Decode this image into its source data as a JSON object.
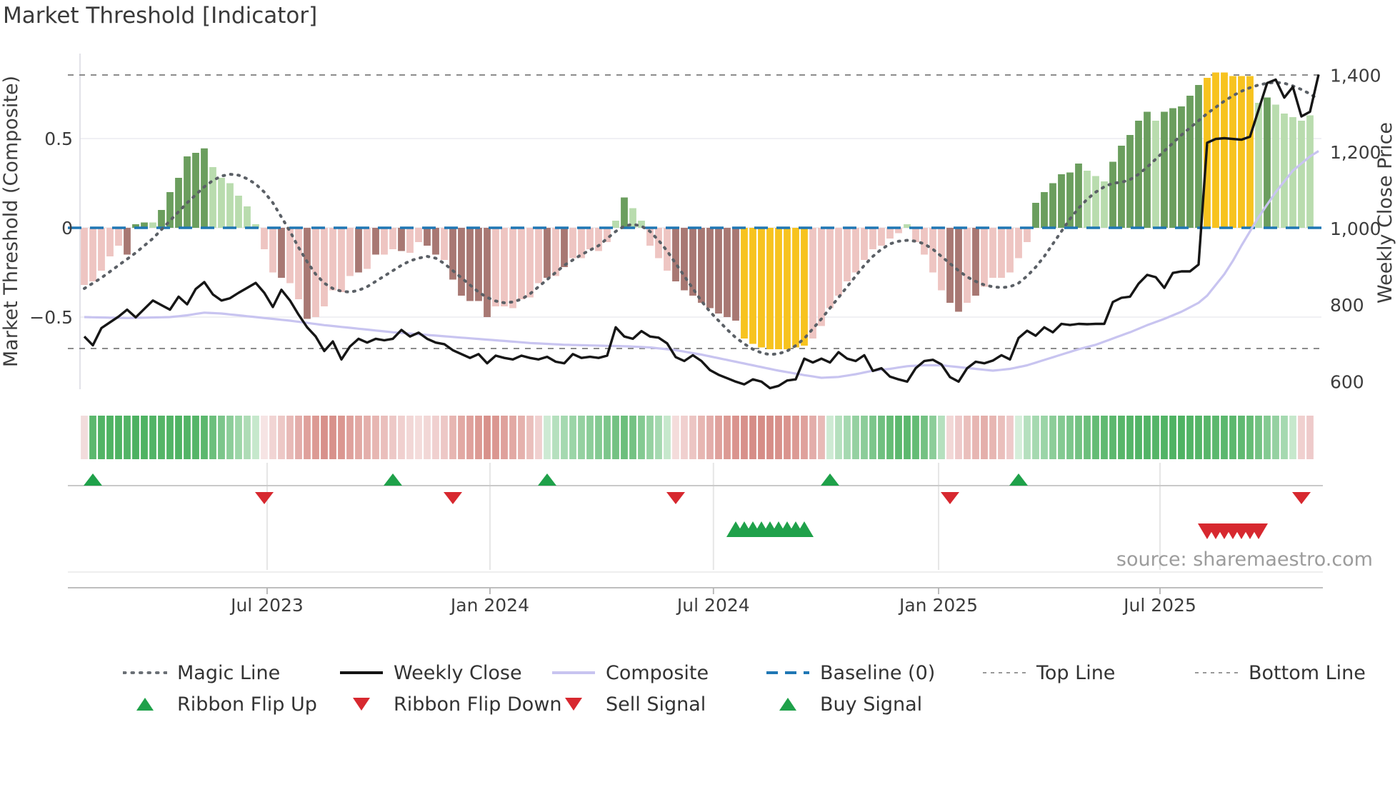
{
  "title": "Market Threshold [Indicator]",
  "source": "source: sharemaestro.com",
  "axes": {
    "left_title": "Market Threshold (Composite)",
    "right_title": "Weekly Close Price",
    "left_ticks": [
      {
        "v": 0.5,
        "label": "0.5"
      },
      {
        "v": 0.0,
        "label": "0"
      },
      {
        "v": -0.5,
        "label": "−0.5"
      }
    ],
    "right_ticks": [
      {
        "p": 1400,
        "label": "1,400"
      },
      {
        "p": 1200,
        "label": "1,200"
      },
      {
        "p": 1000,
        "label": "1,000"
      },
      {
        "p": 800,
        "label": "800"
      },
      {
        "p": 600,
        "label": "600"
      }
    ],
    "x_ticks": [
      {
        "i": 21.33,
        "label": "Jul 2023"
      },
      {
        "i": 47.33,
        "label": "Jan 2024"
      },
      {
        "i": 73.4,
        "label": "Jul 2024"
      },
      {
        "i": 99.67,
        "label": "Jan 2025"
      },
      {
        "i": 125.5,
        "label": "Jul 2025"
      }
    ]
  },
  "legend": {
    "row1": [
      {
        "label": "Magic Line",
        "type": "dotted-bold",
        "color": "#6a6f75"
      },
      {
        "label": "Weekly Close",
        "type": "solid",
        "color": "#141414"
      },
      {
        "label": "Composite",
        "type": "solid",
        "color": "#c8c4f0"
      },
      {
        "label": "Baseline (0)",
        "type": "dashed",
        "color": "#1f77b4"
      },
      {
        "label": "Top Line",
        "type": "dashed-small",
        "color": "#999999"
      },
      {
        "label": "Bottom Line",
        "type": "dashed-small",
        "color": "#999999"
      }
    ],
    "row2": [
      {
        "label": "Ribbon Flip Up",
        "type": "tri-up",
        "color": "#1fa14a"
      },
      {
        "label": "Ribbon Flip Down",
        "type": "tri-down",
        "color": "#d7282f"
      },
      {
        "label": "Sell Signal",
        "type": "tri-down",
        "color": "#d7282f"
      },
      {
        "label": "Buy Signal",
        "type": "tri-up",
        "color": "#1fa14a"
      }
    ],
    "row1_lefts": [
      172,
      475,
      772,
      1072,
      1375,
      1672
    ],
    "row2_lefts": [
      172,
      475,
      772,
      1072
    ]
  },
  "chart_data": {
    "type": "combo",
    "description": "Weekly composite-threshold histogram with ribbon strip, signal markers, weekly close price line (right axis), composite and magic smoothing lines (left axis).",
    "left_ylim": [
      -0.9,
      0.98
    ],
    "right_ylim": [
      580,
      1460
    ],
    "baseline": 0,
    "top_line": 0.856,
    "bottom_line": -0.676,
    "bar_color_map": {
      "G": "#6b9e5e",
      "g": "#b9dcae",
      "r": "#eec5c2",
      "R": "#a87873",
      "y": "#f7c31f"
    },
    "line_colors": {
      "weekly_close": "#161616",
      "composite": "#c8c4f0",
      "magic": "#5b6066",
      "baseline": "#1f77b4",
      "top_bottom": "#8c8c8c",
      "flip_up": "#1fa14a",
      "flip_down": "#d7282f"
    },
    "composite_bars": {
      "values": [
        -0.32,
        -0.3,
        -0.24,
        -0.16,
        -0.1,
        -0.15,
        0.02,
        0.03,
        0.03,
        0.1,
        0.2,
        0.28,
        0.4,
        0.42,
        0.445,
        0.34,
        0.28,
        0.25,
        0.18,
        0.12,
        0.02,
        -0.12,
        -0.25,
        -0.28,
        -0.31,
        -0.4,
        -0.51,
        -0.5,
        -0.44,
        -0.35,
        -0.36,
        -0.27,
        -0.25,
        -0.23,
        -0.15,
        -0.15,
        -0.12,
        -0.13,
        -0.14,
        -0.08,
        -0.1,
        -0.15,
        -0.18,
        -0.29,
        -0.38,
        -0.41,
        -0.41,
        -0.5,
        -0.44,
        -0.44,
        -0.45,
        -0.4,
        -0.39,
        -0.31,
        -0.28,
        -0.27,
        -0.22,
        -0.17,
        -0.17,
        -0.12,
        -0.13,
        -0.08,
        0.04,
        0.17,
        0.11,
        0.04,
        -0.1,
        -0.17,
        -0.24,
        -0.3,
        -0.35,
        -0.38,
        -0.42,
        -0.45,
        -0.48,
        -0.5,
        -0.52,
        -0.62,
        -0.65,
        -0.67,
        -0.68,
        -0.68,
        -0.68,
        -0.67,
        -0.66,
        -0.62,
        -0.55,
        -0.45,
        -0.38,
        -0.3,
        -0.25,
        -0.18,
        -0.12,
        -0.1,
        -0.06,
        -0.03,
        0.02,
        -0.08,
        -0.15,
        -0.25,
        -0.35,
        -0.42,
        -0.47,
        -0.42,
        -0.38,
        -0.33,
        -0.28,
        -0.28,
        -0.25,
        -0.17,
        -0.08,
        0.14,
        0.2,
        0.25,
        0.3,
        0.31,
        0.36,
        0.32,
        0.29,
        0.26,
        0.37,
        0.46,
        0.52,
        0.6,
        0.65,
        0.6,
        0.65,
        0.67,
        0.68,
        0.74,
        0.8,
        0.84,
        0.87,
        0.87,
        0.85,
        0.85,
        0.85,
        0.7,
        0.73,
        0.69,
        0.64,
        0.62,
        0.6,
        0.63
      ],
      "colors": "rrrrrRGGgGGGGGGggggggrrRrrRrrrrrRrRrrRrrRRrRRRRRrrrrrrRrRrrrrrgGggrrrRRRRRRRRyyyyyyyyrrrrrrrrrrrgrrrrRRrRrrrrrrGGGGGGgggGGGGGgGGGGGyyyyyygGggggg"
    },
    "ribbon_colors": [
      "#f2dcdc",
      "#5cb86e",
      "#52b466",
      "#4fb363",
      "#4fb363",
      "#52b466",
      "#4db161",
      "#4fb363",
      "#52b466",
      "#55b568",
      "#52b466",
      "#4fb363",
      "#52b466",
      "#55b568",
      "#5cb86e",
      "#6cbf7c",
      "#7cc68b",
      "#8ccd99",
      "#9dd6a8",
      "#aedcb6",
      "#c6e8cc",
      "#f6e4e4",
      "#f1d4d3",
      "#edc8c6",
      "#e8bab7",
      "#e3adaa",
      "#dfa19c",
      "#dc9a94",
      "#d8918b",
      "#d8918b",
      "#db9791",
      "#dfa19c",
      "#e2a9a4",
      "#e4afab",
      "#e7b6b2",
      "#eabfbc",
      "#edc8c6",
      "#f0d0cf",
      "#f2d7d6",
      "#f4dcdb",
      "#f2d7d6",
      "#f0d0cf",
      "#edc8c6",
      "#e7b6b2",
      "#e2a9a4",
      "#dfa19c",
      "#dc9a94",
      "#d8918b",
      "#db9791",
      "#dfa19c",
      "#e2a9a4",
      "#e5b1ad",
      "#eabfbc",
      "#f0d0cf",
      "#cdead3",
      "#b5e0be",
      "#a5d9b0",
      "#9bd5a7",
      "#95d1a1",
      "#8ccd99",
      "#84ca92",
      "#7cc68b",
      "#74c283",
      "#6cbf7c",
      "#74c283",
      "#84ca92",
      "#95d1a1",
      "#a5d9b0",
      "#c6e8cc",
      "#f4dcdb",
      "#f0d0cf",
      "#ecc5c3",
      "#e7b6b2",
      "#e3adaa",
      "#dfa19c",
      "#dc9a94",
      "#da948e",
      "#d8918b",
      "#d68d87",
      "#d68d87",
      "#d68d87",
      "#d8918b",
      "#da948e",
      "#dc9a94",
      "#dfa19c",
      "#e3adaa",
      "#e8bab7",
      "#cdead3",
      "#b5e0be",
      "#a5d9b0",
      "#95d1a1",
      "#8ccd99",
      "#7cc68b",
      "#70c080",
      "#65bc75",
      "#5cb86e",
      "#5cb86e",
      "#65bc75",
      "#74c283",
      "#8ccd99",
      "#b5e0be",
      "#f2d7d6",
      "#eecaca",
      "#eabfbc",
      "#e7b6b2",
      "#e4afab",
      "#e7b6b2",
      "#eabfbc",
      "#eecaca",
      "#d5eeda",
      "#b5e0be",
      "#a5d9b0",
      "#9bd5a7",
      "#8ccd99",
      "#84ca92",
      "#7cc68b",
      "#74c283",
      "#6cbf7c",
      "#65bc75",
      "#60ba72",
      "#5cb86e",
      "#58b66a",
      "#55b568",
      "#52b466",
      "#52b466",
      "#55b568",
      "#52b466",
      "#4fb363",
      "#4fb363",
      "#52b466",
      "#55b568",
      "#58b66a",
      "#5cb86e",
      "#5cb86e",
      "#5cb86e",
      "#60ba72",
      "#65bc75",
      "#74c283",
      "#84ca92",
      "#95d1a1",
      "#a5d9b0",
      "#c6e8cc",
      "#f0d0cf",
      "#eecaca"
    ],
    "weekly_close": [
      718,
      695,
      740,
      755,
      770,
      788,
      768,
      790,
      812,
      800,
      788,
      822,
      802,
      842,
      860,
      828,
      812,
      818,
      832,
      845,
      858,
      832,
      795,
      840,
      812,
      775,
      742,
      718,
      680,
      705,
      658,
      692,
      712,
      702,
      712,
      708,
      712,
      735,
      718,
      728,
      712,
      702,
      698,
      682,
      672,
      662,
      672,
      648,
      668,
      662,
      658,
      668,
      662,
      658,
      665,
      652,
      648,
      672,
      662,
      665,
      662,
      668,
      742,
      718,
      712,
      732,
      718,
      715,
      700,
      664,
      654,
      669,
      654,
      630,
      618,
      609,
      600,
      593,
      606,
      600,
      583,
      589,
      603,
      606,
      660,
      650,
      660,
      650,
      677,
      660,
      654,
      669,
      628,
      635,
      613,
      606,
      600,
      635,
      654,
      657,
      645,
      612,
      600,
      635,
      652,
      648,
      655,
      669,
      658,
      714,
      733,
      720,
      742,
      729,
      751,
      748,
      751,
      750,
      751,
      751,
      808,
      819,
      822,
      856,
      879,
      873,
      845,
      884,
      888,
      888,
      906,
      1224,
      1234,
      1236,
      1234,
      1232,
      1240,
      1310,
      1380,
      1389,
      1342,
      1370,
      1293,
      1305,
      1402
    ],
    "composite_line_points": [
      [
        0,
        -0.5
      ],
      [
        5,
        -0.505
      ],
      [
        10,
        -0.5
      ],
      [
        12,
        -0.49
      ],
      [
        14,
        -0.475
      ],
      [
        16,
        -0.48
      ],
      [
        20,
        -0.5
      ],
      [
        24,
        -0.52
      ],
      [
        28,
        -0.545
      ],
      [
        32,
        -0.565
      ],
      [
        36,
        -0.585
      ],
      [
        40,
        -0.6
      ],
      [
        44,
        -0.615
      ],
      [
        48,
        -0.63
      ],
      [
        52,
        -0.645
      ],
      [
        56,
        -0.655
      ],
      [
        60,
        -0.66
      ],
      [
        63,
        -0.663
      ],
      [
        66,
        -0.67
      ],
      [
        69,
        -0.685
      ],
      [
        72,
        -0.71
      ],
      [
        75,
        -0.74
      ],
      [
        78,
        -0.77
      ],
      [
        81,
        -0.8
      ],
      [
        84,
        -0.825
      ],
      [
        86,
        -0.84
      ],
      [
        88,
        -0.835
      ],
      [
        90,
        -0.82
      ],
      [
        92,
        -0.8
      ],
      [
        94,
        -0.79
      ],
      [
        96,
        -0.775
      ],
      [
        98,
        -0.77
      ],
      [
        100,
        -0.77
      ],
      [
        102,
        -0.78
      ],
      [
        104,
        -0.79
      ],
      [
        106,
        -0.8
      ],
      [
        108,
        -0.79
      ],
      [
        110,
        -0.77
      ],
      [
        112,
        -0.74
      ],
      [
        114,
        -0.71
      ],
      [
        116,
        -0.68
      ],
      [
        118,
        -0.655
      ],
      [
        120,
        -0.62
      ],
      [
        122,
        -0.585
      ],
      [
        124,
        -0.545
      ],
      [
        126,
        -0.51
      ],
      [
        128,
        -0.47
      ],
      [
        130,
        -0.42
      ],
      [
        131,
        -0.38
      ],
      [
        132,
        -0.32
      ],
      [
        133,
        -0.26
      ],
      [
        134,
        -0.185
      ],
      [
        135,
        -0.1
      ],
      [
        136,
        -0.02
      ],
      [
        137,
        0.06
      ],
      [
        138,
        0.13
      ],
      [
        139,
        0.2
      ],
      [
        140,
        0.26
      ],
      [
        141,
        0.32
      ],
      [
        142,
        0.36
      ],
      [
        143,
        0.4
      ],
      [
        144,
        0.43
      ]
    ],
    "magic_line_points": [
      [
        0,
        -0.34
      ],
      [
        2,
        -0.28
      ],
      [
        4,
        -0.21
      ],
      [
        6,
        -0.14
      ],
      [
        8,
        -0.06
      ],
      [
        10,
        0.04
      ],
      [
        12,
        0.14
      ],
      [
        14,
        0.23
      ],
      [
        15,
        0.265
      ],
      [
        16,
        0.29
      ],
      [
        17,
        0.3
      ],
      [
        18,
        0.295
      ],
      [
        19,
        0.275
      ],
      [
        20,
        0.245
      ],
      [
        21,
        0.2
      ],
      [
        22,
        0.14
      ],
      [
        23,
        0.06
      ],
      [
        24,
        -0.02
      ],
      [
        25,
        -0.11
      ],
      [
        26,
        -0.19
      ],
      [
        27,
        -0.26
      ],
      [
        28,
        -0.31
      ],
      [
        29,
        -0.34
      ],
      [
        30,
        -0.355
      ],
      [
        31,
        -0.36
      ],
      [
        32,
        -0.35
      ],
      [
        33,
        -0.33
      ],
      [
        34,
        -0.3
      ],
      [
        35,
        -0.27
      ],
      [
        36,
        -0.24
      ],
      [
        37,
        -0.21
      ],
      [
        38,
        -0.185
      ],
      [
        39,
        -0.17
      ],
      [
        40,
        -0.16
      ],
      [
        41,
        -0.17
      ],
      [
        42,
        -0.2
      ],
      [
        43,
        -0.24
      ],
      [
        44,
        -0.28
      ],
      [
        45,
        -0.32
      ],
      [
        46,
        -0.36
      ],
      [
        47,
        -0.39
      ],
      [
        48,
        -0.41
      ],
      [
        49,
        -0.42
      ],
      [
        50,
        -0.415
      ],
      [
        51,
        -0.4
      ],
      [
        52,
        -0.37
      ],
      [
        53,
        -0.33
      ],
      [
        54,
        -0.29
      ],
      [
        55,
        -0.25
      ],
      [
        56,
        -0.21
      ],
      [
        57,
        -0.18
      ],
      [
        58,
        -0.15
      ],
      [
        59,
        -0.125
      ],
      [
        60,
        -0.1
      ],
      [
        61,
        -0.06
      ],
      [
        62,
        -0.02
      ],
      [
        63,
        0.01
      ],
      [
        64,
        0.02
      ],
      [
        65,
        0.01
      ],
      [
        66,
        -0.02
      ],
      [
        67,
        -0.07
      ],
      [
        68,
        -0.13
      ],
      [
        69,
        -0.2
      ],
      [
        70,
        -0.27
      ],
      [
        71,
        -0.34
      ],
      [
        72,
        -0.41
      ],
      [
        73,
        -0.47
      ],
      [
        74,
        -0.52
      ],
      [
        75,
        -0.57
      ],
      [
        76,
        -0.615
      ],
      [
        77,
        -0.65
      ],
      [
        78,
        -0.68
      ],
      [
        79,
        -0.7
      ],
      [
        80,
        -0.71
      ],
      [
        81,
        -0.705
      ],
      [
        82,
        -0.69
      ],
      [
        83,
        -0.66
      ],
      [
        84,
        -0.62
      ],
      [
        85,
        -0.565
      ],
      [
        86,
        -0.51
      ],
      [
        87,
        -0.45
      ],
      [
        88,
        -0.39
      ],
      [
        89,
        -0.33
      ],
      [
        90,
        -0.27
      ],
      [
        91,
        -0.21
      ],
      [
        92,
        -0.16
      ],
      [
        93,
        -0.12
      ],
      [
        94,
        -0.09
      ],
      [
        95,
        -0.075
      ],
      [
        96,
        -0.07
      ],
      [
        97,
        -0.075
      ],
      [
        98,
        -0.09
      ],
      [
        99,
        -0.12
      ],
      [
        100,
        -0.16
      ],
      [
        101,
        -0.2
      ],
      [
        102,
        -0.24
      ],
      [
        103,
        -0.275
      ],
      [
        104,
        -0.3
      ],
      [
        105,
        -0.32
      ],
      [
        106,
        -0.33
      ],
      [
        107,
        -0.335
      ],
      [
        108,
        -0.33
      ],
      [
        109,
        -0.31
      ],
      [
        110,
        -0.27
      ],
      [
        111,
        -0.22
      ],
      [
        112,
        -0.16
      ],
      [
        113,
        -0.09
      ],
      [
        114,
        -0.02
      ],
      [
        115,
        0.05
      ],
      [
        116,
        0.11
      ],
      [
        117,
        0.16
      ],
      [
        118,
        0.2
      ],
      [
        119,
        0.23
      ],
      [
        120,
        0.25
      ],
      [
        121,
        0.255
      ],
      [
        122,
        0.27
      ],
      [
        123,
        0.3
      ],
      [
        124,
        0.34
      ],
      [
        125,
        0.385
      ],
      [
        126,
        0.43
      ],
      [
        127,
        0.475
      ],
      [
        128,
        0.52
      ],
      [
        129,
        0.56
      ],
      [
        130,
        0.6
      ],
      [
        131,
        0.64
      ],
      [
        132,
        0.675
      ],
      [
        133,
        0.71
      ],
      [
        134,
        0.74
      ],
      [
        135,
        0.765
      ],
      [
        136,
        0.785
      ],
      [
        137,
        0.8
      ],
      [
        138,
        0.81
      ],
      [
        139,
        0.815
      ],
      [
        140,
        0.81
      ],
      [
        141,
        0.795
      ],
      [
        142,
        0.775
      ],
      [
        143,
        0.75
      ],
      [
        144,
        0.72
      ]
    ],
    "signals": {
      "ribbon_flip_up_idx": [
        1,
        36,
        54,
        87,
        109
      ],
      "ribbon_flip_down_idx": [
        21,
        43,
        69,
        101,
        142
      ],
      "buy_signal_idx": [
        76,
        77,
        78,
        79,
        80,
        81,
        82,
        83,
        84
      ],
      "sell_signal_idx": [
        131,
        132,
        133,
        134,
        135,
        136,
        137
      ]
    }
  }
}
